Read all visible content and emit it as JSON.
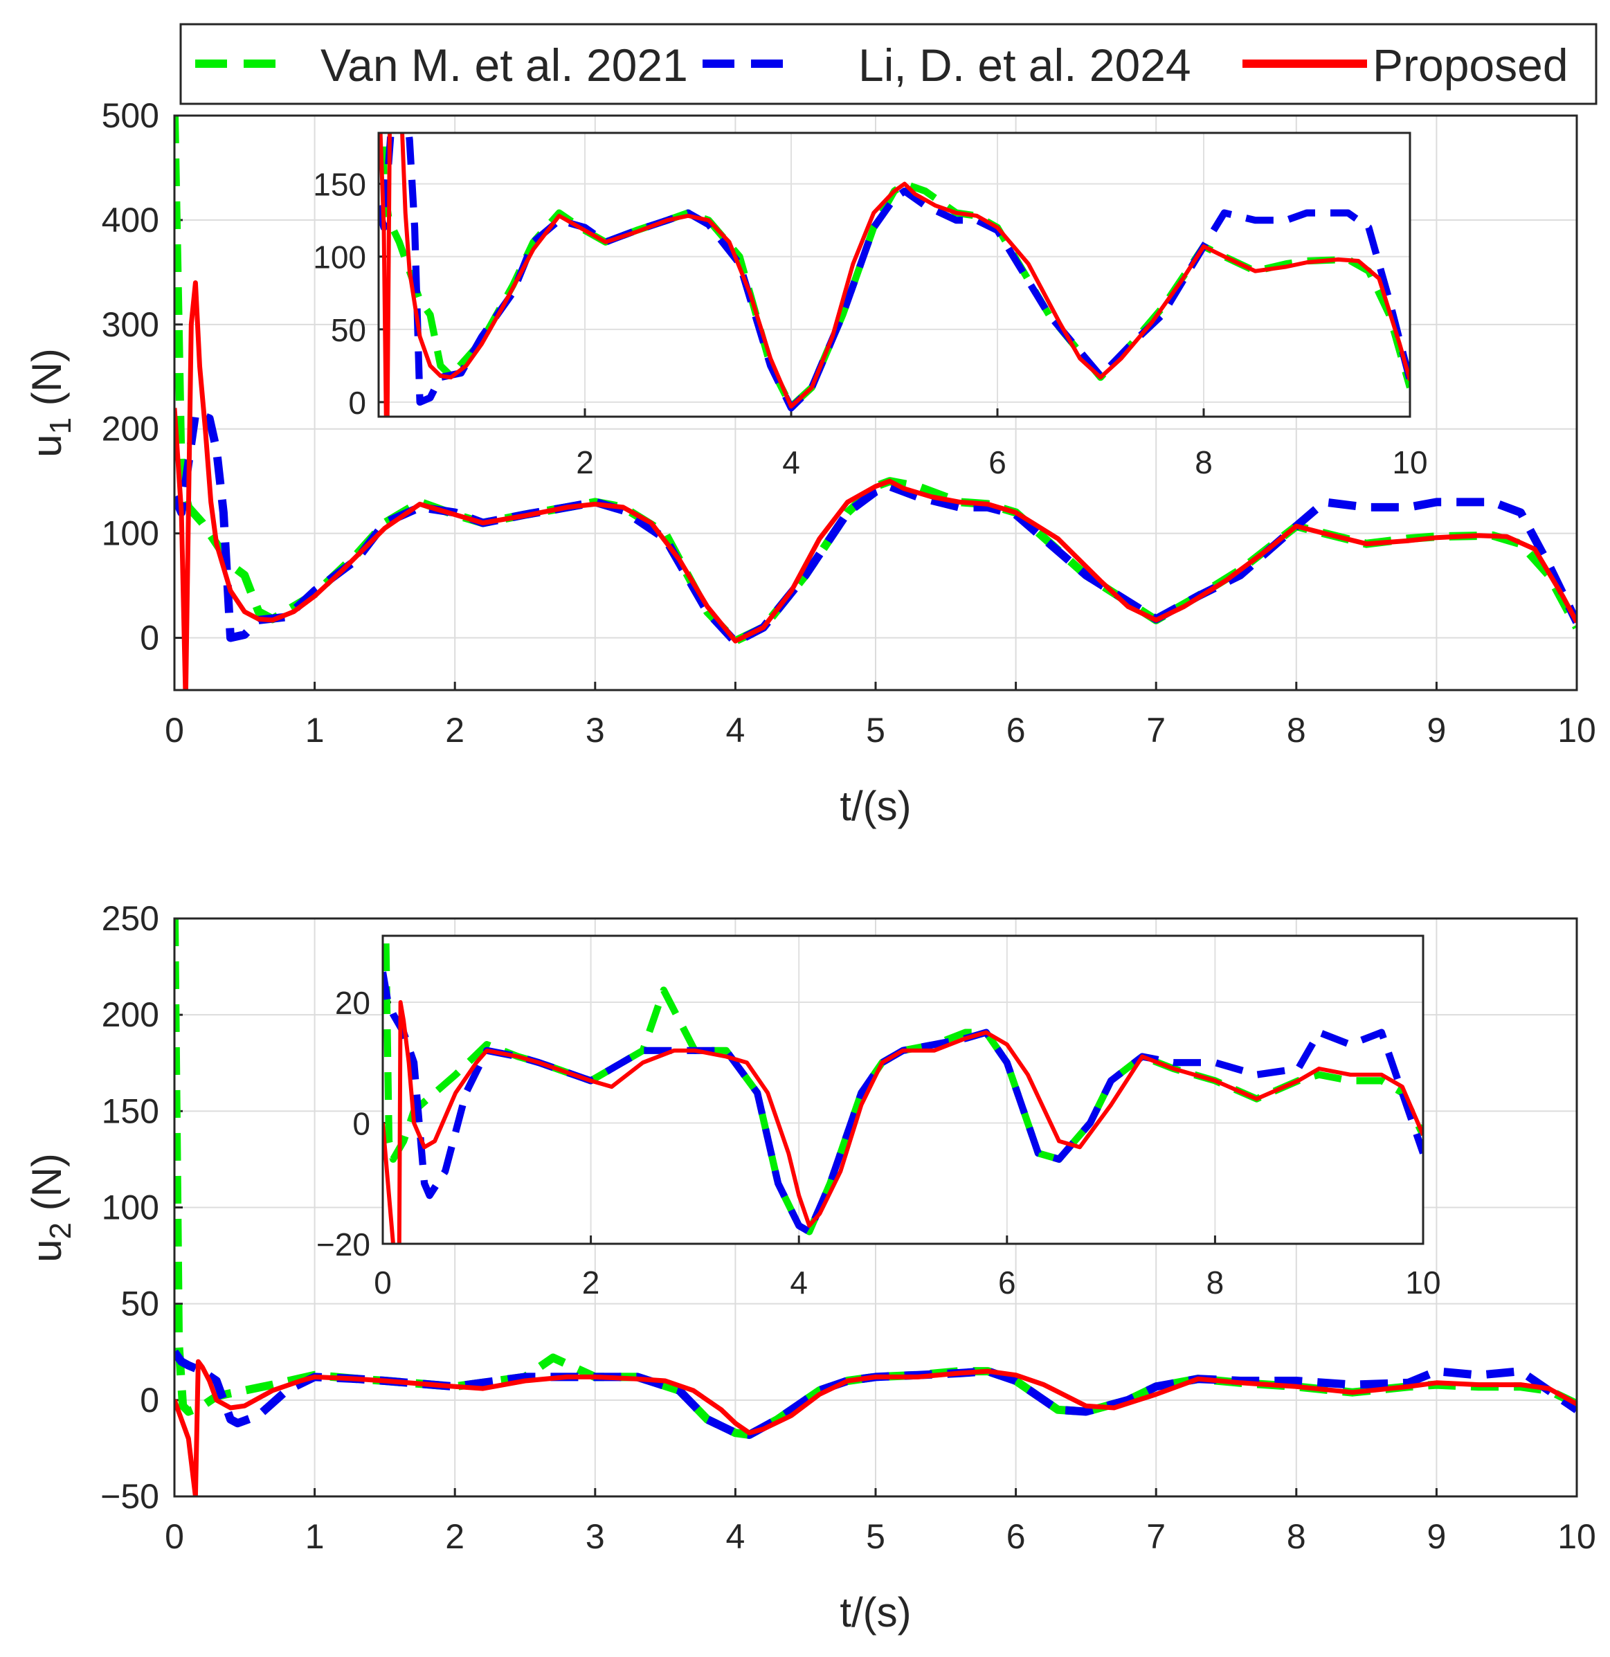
{
  "legend": {
    "entries": [
      {
        "label": "Van M. et al. 2021",
        "color": "#00ee00",
        "style": "dashed"
      },
      {
        "label": "Li, D. et al. 2024",
        "color": "#0000ee",
        "style": "dashed"
      },
      {
        "label": "Proposed",
        "color": "#ff0000",
        "style": "solid"
      }
    ]
  },
  "chart_data": [
    {
      "type": "line",
      "id": "u1",
      "ylabel_main": "u",
      "ylabel_sub": "1",
      "ylabel_unit": " (N)",
      "xlabel": "t/(s)",
      "xlim": [
        0,
        10
      ],
      "ylim": [
        -50,
        500
      ],
      "xticks": [
        "0",
        "1",
        "2",
        "3",
        "4",
        "5",
        "6",
        "7",
        "8",
        "9",
        "10"
      ],
      "yticks": [
        "0",
        "100",
        "200",
        "300",
        "400",
        "500"
      ],
      "grid": true,
      "series": [
        {
          "name": "Van M. et al. 2021",
          "x": [
            0,
            0.05,
            0.1,
            0.2,
            0.3,
            0.4,
            0.5,
            0.6,
            0.7,
            1.0,
            1.3,
            1.5,
            1.75,
            2.0,
            2.2,
            2.5,
            2.8,
            3.0,
            3.2,
            3.5,
            3.8,
            4.0,
            4.2,
            4.5,
            4.8,
            5.0,
            5.1,
            5.3,
            5.6,
            5.8,
            6.0,
            6.5,
            7.0,
            7.3,
            7.6,
            8.0,
            8.2,
            8.5,
            8.8,
            9.0,
            9.4,
            9.6,
            9.8,
            10.0
          ],
          "y": [
            500,
            150,
            125,
            110,
            90,
            70,
            60,
            25,
            18,
            42,
            80,
            110,
            130,
            118,
            110,
            118,
            125,
            130,
            125,
            100,
            25,
            -3,
            10,
            60,
            120,
            145,
            150,
            145,
            130,
            128,
            120,
            60,
            17,
            40,
            65,
            107,
            100,
            90,
            95,
            97,
            98,
            90,
            60,
            10
          ]
        },
        {
          "name": "Li, D. et al. 2024",
          "x": [
            0,
            0.05,
            0.15,
            0.25,
            0.3,
            0.35,
            0.4,
            0.5,
            0.6,
            0.8,
            1.0,
            1.3,
            1.5,
            1.75,
            2.0,
            2.2,
            2.5,
            2.8,
            3.0,
            3.2,
            3.5,
            3.8,
            4.0,
            4.2,
            4.5,
            4.8,
            5.0,
            5.1,
            5.3,
            5.6,
            5.8,
            6.0,
            6.5,
            7.0,
            7.3,
            7.6,
            8.0,
            8.2,
            8.5,
            8.8,
            9.0,
            9.4,
            9.6,
            9.8,
            10.0
          ],
          "y": [
            135,
            120,
            215,
            210,
            180,
            120,
            0,
            3,
            17,
            20,
            45,
            75,
            110,
            125,
            120,
            110,
            118,
            125,
            130,
            122,
            95,
            25,
            -4,
            10,
            60,
            120,
            140,
            145,
            135,
            125,
            125,
            118,
            60,
            18,
            40,
            60,
            107,
            130,
            125,
            125,
            130,
            130,
            120,
            70,
            15
          ]
        },
        {
          "name": "Proposed",
          "x": [
            0,
            0.05,
            0.08,
            0.12,
            0.15,
            0.18,
            0.22,
            0.26,
            0.3,
            0.4,
            0.5,
            0.6,
            0.7,
            0.85,
            1.0,
            1.2,
            1.5,
            1.75,
            2.0,
            2.2,
            2.5,
            2.8,
            3.0,
            3.2,
            3.4,
            3.6,
            3.8,
            4.0,
            4.2,
            4.4,
            4.6,
            4.8,
            5.0,
            5.1,
            5.2,
            5.4,
            5.6,
            5.8,
            6.0,
            6.3,
            6.6,
            6.8,
            7.0,
            7.2,
            7.5,
            7.8,
            8.0,
            8.2,
            8.5,
            8.8,
            9.0,
            9.3,
            9.5,
            9.7,
            9.9,
            10.0
          ],
          "y": [
            220,
            120,
            -60,
            300,
            340,
            260,
            200,
            130,
            90,
            45,
            25,
            18,
            17,
            25,
            40,
            65,
            105,
            128,
            118,
            110,
            117,
            125,
            128,
            125,
            110,
            75,
            30,
            -3,
            10,
            45,
            95,
            130,
            145,
            150,
            143,
            135,
            130,
            128,
            120,
            95,
            55,
            30,
            17,
            30,
            55,
            85,
            107,
            100,
            90,
            93,
            96,
            98,
            97,
            85,
            40,
            15
          ]
        }
      ],
      "inset": {
        "xlim": [
          0,
          10
        ],
        "ylim": [
          -10,
          185
        ],
        "xticks": [
          "2",
          "4",
          "6",
          "8",
          "10"
        ],
        "yticks": [
          "0",
          "50",
          "100",
          "150"
        ]
      }
    },
    {
      "type": "line",
      "id": "u2",
      "ylabel_main": "u",
      "ylabel_sub": "2",
      "ylabel_unit": " (N)",
      "xlabel": "t/(s)",
      "xlim": [
        0,
        10
      ],
      "ylim": [
        -50,
        250
      ],
      "xticks": [
        "0",
        "1",
        "2",
        "3",
        "4",
        "5",
        "6",
        "7",
        "8",
        "9",
        "10"
      ],
      "yticks": [
        "−50",
        "0",
        "50",
        "100",
        "150",
        "200",
        "250"
      ],
      "grid": true,
      "series": [
        {
          "name": "Van M. et al. 2021",
          "x": [
            0,
            0.03,
            0.06,
            0.1,
            0.2,
            0.3,
            0.5,
            0.7,
            1.0,
            1.3,
            1.5,
            2.0,
            2.5,
            2.7,
            3.0,
            3.3,
            3.6,
            3.8,
            4.0,
            4.1,
            4.3,
            4.6,
            4.8,
            5.0,
            5.3,
            5.6,
            5.8,
            6.0,
            6.3,
            6.5,
            6.8,
            7.0,
            7.3,
            7.6,
            8.0,
            8.4,
            8.8,
            9.0,
            9.3,
            9.6,
            9.8,
            10.0
          ],
          "y": [
            250,
            30,
            -3,
            -6,
            -3,
            2,
            5,
            8,
            13,
            11,
            10,
            7,
            12,
            22,
            12,
            12,
            5,
            -10,
            -17,
            -18,
            -10,
            5,
            10,
            12,
            13,
            15,
            15,
            10,
            -5,
            -6,
            0,
            7,
            11,
            9,
            7,
            4,
            7,
            8,
            7,
            7,
            5,
            -2
          ]
        },
        {
          "name": "Li, D. et al. 2024",
          "x": [
            0,
            0.05,
            0.1,
            0.2,
            0.3,
            0.4,
            0.45,
            0.6,
            0.8,
            1.0,
            1.3,
            1.5,
            2.0,
            2.5,
            2.7,
            3.0,
            3.3,
            3.6,
            3.8,
            4.0,
            4.1,
            4.3,
            4.6,
            4.8,
            5.0,
            5.3,
            5.6,
            5.8,
            6.0,
            6.3,
            6.5,
            6.8,
            7.0,
            7.3,
            7.6,
            8.0,
            8.4,
            8.8,
            9.0,
            9.3,
            9.6,
            9.8,
            10.0
          ],
          "y": [
            25,
            20,
            18,
            15,
            10,
            -10,
            -12,
            -8,
            5,
            12,
            11,
            10,
            7,
            12,
            12,
            12,
            12,
            5,
            -10,
            -17,
            -18,
            -10,
            5,
            10,
            12,
            13,
            14,
            15,
            10,
            -5,
            -6,
            0,
            7,
            11,
            10,
            10,
            8,
            9,
            15,
            13,
            15,
            5,
            -5
          ]
        },
        {
          "name": "Proposed",
          "x": [
            0,
            0.1,
            0.15,
            0.17,
            0.2,
            0.25,
            0.3,
            0.4,
            0.5,
            0.7,
            0.9,
            1.0,
            1.3,
            1.5,
            2.0,
            2.2,
            2.5,
            2.8,
            3.0,
            3.3,
            3.5,
            3.7,
            3.9,
            4.0,
            4.1,
            4.2,
            4.4,
            4.6,
            4.8,
            5.0,
            5.3,
            5.6,
            5.8,
            6.0,
            6.2,
            6.5,
            6.7,
            7.0,
            7.3,
            7.6,
            8.0,
            8.4,
            8.8,
            9.0,
            9.3,
            9.6,
            9.8,
            10.0
          ],
          "y": [
            0,
            -20,
            -50,
            20,
            17,
            10,
            0,
            -4,
            -3,
            5,
            10,
            12,
            11,
            10,
            7,
            6,
            10,
            12,
            12,
            11,
            10,
            5,
            -5,
            -12,
            -17,
            -15,
            -8,
            3,
            10,
            12,
            12,
            14,
            15,
            13,
            8,
            -3,
            -4,
            3,
            11,
            9,
            7,
            4,
            7,
            9,
            8,
            8,
            6,
            -2
          ]
        }
      ],
      "inset": {
        "xlim": [
          0,
          10
        ],
        "ylim": [
          -20,
          31
        ],
        "xticks": [
          "0",
          "2",
          "4",
          "6",
          "8",
          "10"
        ],
        "yticks": [
          "−20",
          "0",
          "20"
        ]
      }
    }
  ]
}
